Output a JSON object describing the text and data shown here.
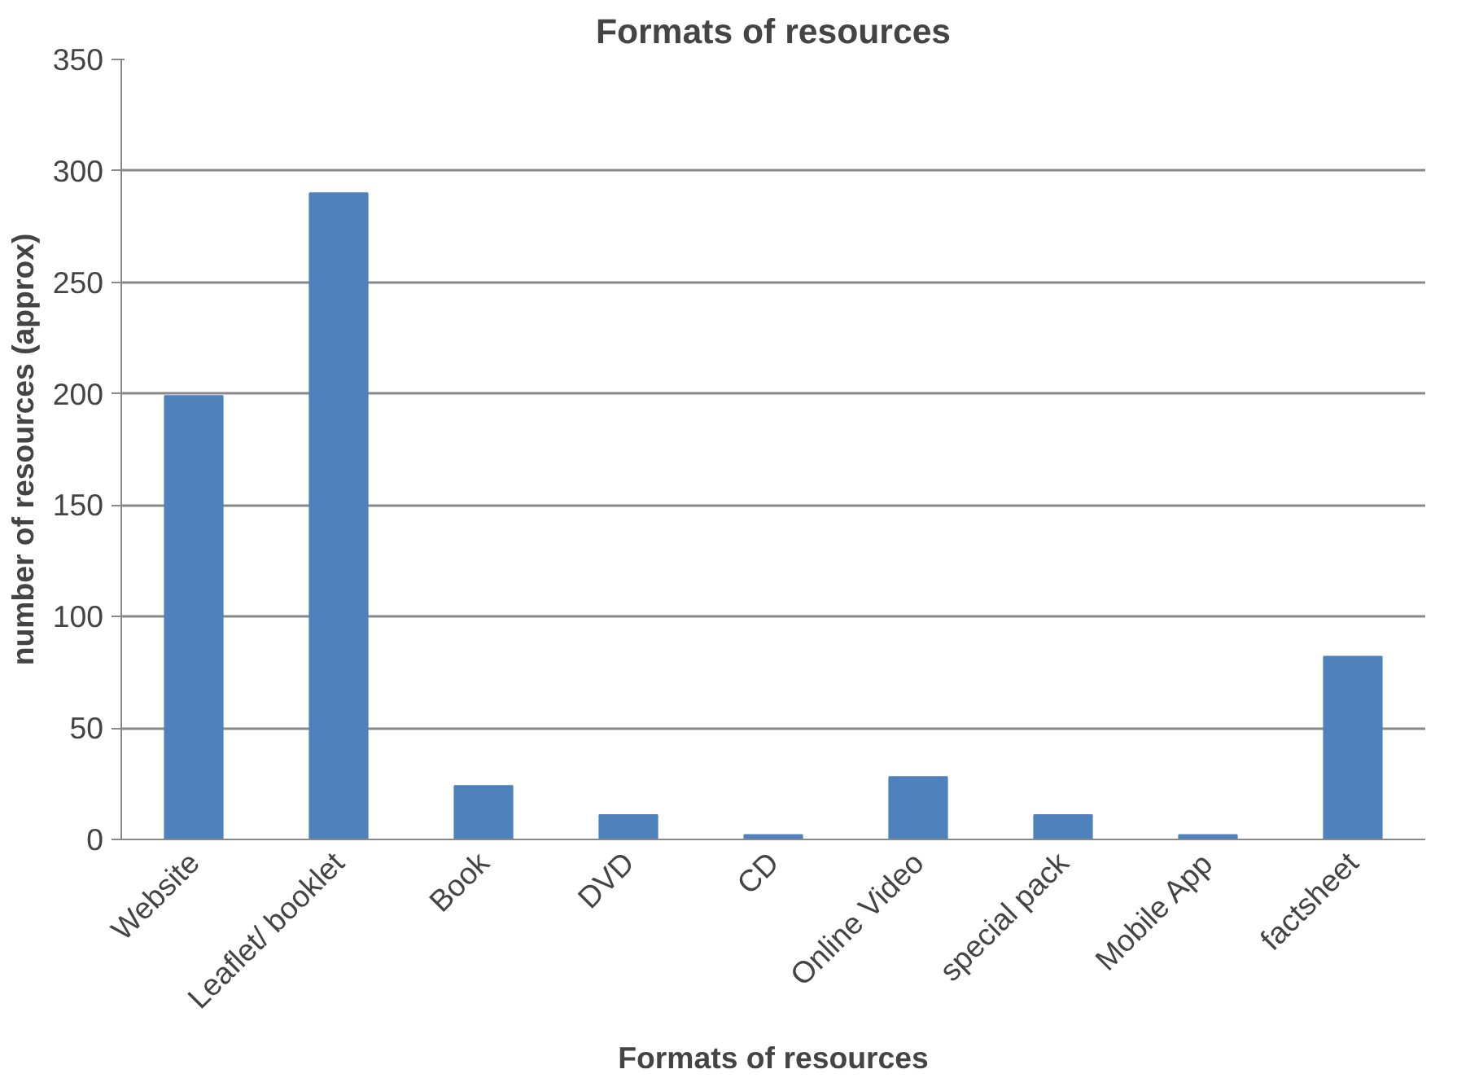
{
  "chart_data": {
    "type": "bar",
    "title": "Formats of resources",
    "xlabel": "Formats of resources",
    "ylabel": "number of resources (approx)",
    "categories": [
      "Website",
      "Leaflet/ booklet",
      "Book",
      "DVD",
      "CD",
      "Online Video",
      "special pack",
      "Mobile App",
      "factsheet"
    ],
    "values": [
      199,
      290,
      24,
      11,
      2,
      28,
      11,
      2,
      82
    ],
    "color": "#4f81bd",
    "ylim": [
      0,
      350
    ],
    "yticks": [
      0,
      50,
      100,
      150,
      200,
      250,
      300,
      350
    ],
    "grid": "y"
  }
}
